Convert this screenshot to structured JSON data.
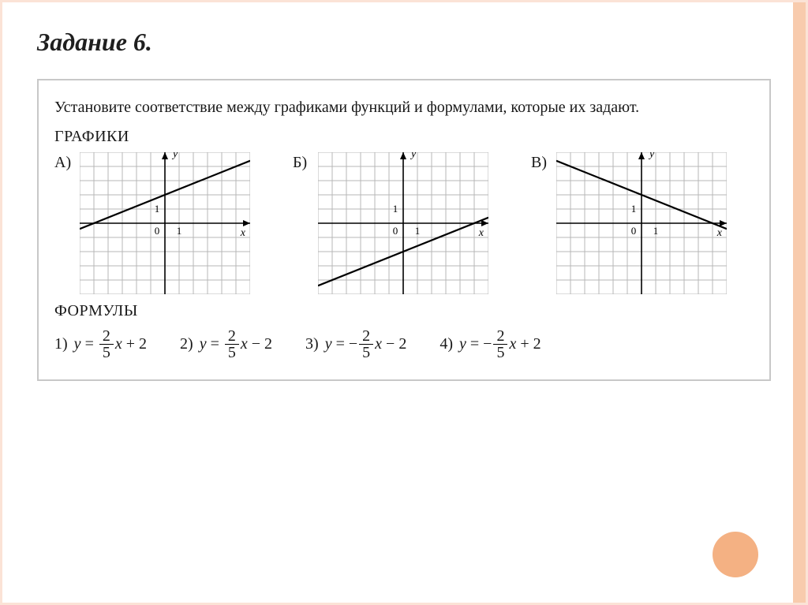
{
  "title": "Задание 6.",
  "instruction": "Установите соответствие между графиками функций и формулами, которые их задают.",
  "section_graphs": "ГРАФИКИ",
  "section_formulas": "ФОРМУЛЫ",
  "charts": [
    {
      "label": "А)",
      "type": "line",
      "xlim": [
        -6,
        6
      ],
      "ylim": [
        -5,
        5
      ],
      "xtick_step": 1,
      "ytick_step": 1,
      "line_p1": [
        -6,
        -0.4
      ],
      "line_p2": [
        6,
        4.4
      ],
      "x_axis_label": "x",
      "y_axis_label": "y",
      "label_0": "0",
      "label_1x": "1",
      "label_1y": "1",
      "grid_color": "#b7b7b7",
      "axis_color": "#000000",
      "line_color": "#000000",
      "line_width": 2.2,
      "background_color": "#ffffff",
      "axis_label_fontsize": 14,
      "tick_label_fontsize": 13
    },
    {
      "label": "Б)",
      "type": "line",
      "xlim": [
        -6,
        6
      ],
      "ylim": [
        -5,
        5
      ],
      "xtick_step": 1,
      "ytick_step": 1,
      "line_p1": [
        -6,
        -4.4
      ],
      "line_p2": [
        6,
        0.4
      ],
      "x_axis_label": "x",
      "y_axis_label": "y",
      "label_0": "0",
      "label_1x": "1",
      "label_1y": "1",
      "grid_color": "#b7b7b7",
      "axis_color": "#000000",
      "line_color": "#000000",
      "line_width": 2.2,
      "background_color": "#ffffff",
      "axis_label_fontsize": 14,
      "tick_label_fontsize": 13
    },
    {
      "label": "В)",
      "type": "line",
      "xlim": [
        -6,
        6
      ],
      "ylim": [
        -5,
        5
      ],
      "xtick_step": 1,
      "ytick_step": 1,
      "line_p1": [
        -6,
        4.4
      ],
      "line_p2": [
        6,
        -0.4
      ],
      "x_axis_label": "x",
      "y_axis_label": "y",
      "label_0": "0",
      "label_1x": "1",
      "label_1y": "1",
      "grid_color": "#b7b7b7",
      "axis_color": "#000000",
      "line_color": "#000000",
      "line_width": 2.2,
      "background_color": "#ffffff",
      "axis_label_fontsize": 14,
      "tick_label_fontsize": 13
    }
  ],
  "formulas": [
    {
      "num": "1)",
      "lhs": "y",
      "eq": "=",
      "frac_top": "2",
      "frac_bot": "5",
      "var": "x",
      "tail": "+ 2"
    },
    {
      "num": "2)",
      "lhs": "y",
      "eq": "=",
      "frac_top": "2",
      "frac_bot": "5",
      "var": "x",
      "tail": "− 2"
    },
    {
      "num": "3)",
      "lhs": "y",
      "eq": "=",
      "neg": "−",
      "frac_top": "2",
      "frac_bot": "5",
      "var": "x",
      "tail": "− 2"
    },
    {
      "num": "4)",
      "lhs": "y",
      "eq": "=",
      "neg": "−",
      "frac_top": "2",
      "frac_bot": "5",
      "var": "x",
      "tail": "+ 2"
    }
  ],
  "colors": {
    "frame_light": "#fbe3d6",
    "frame_accent": "#f8cbad",
    "circle": "#f4b183"
  }
}
